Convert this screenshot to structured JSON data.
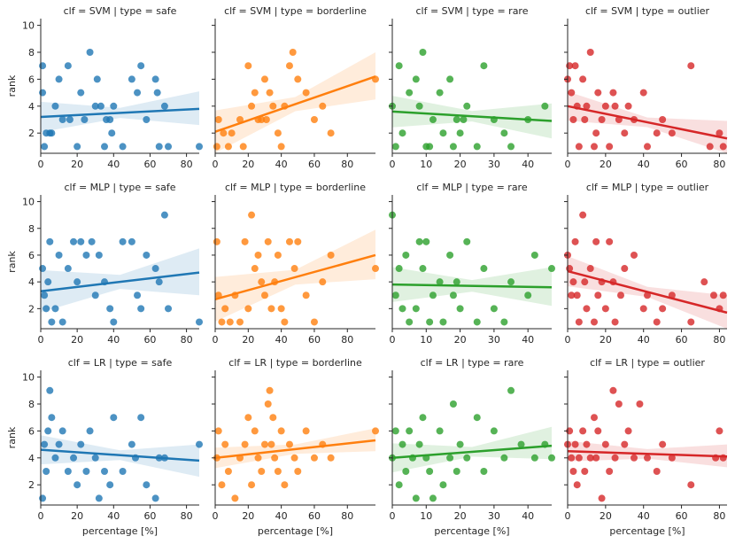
{
  "figure": {
    "xlabel": "percentage [%]",
    "ylabel": "rank",
    "yticks": [
      2,
      4,
      6,
      8,
      10
    ],
    "ylim": [
      0.5,
      10.5
    ]
  },
  "type_colors": {
    "safe": "#1f77b4",
    "borderline": "#ff7f0e",
    "rare": "#2ca02c",
    "outlier": "#d62728"
  },
  "columns": [
    {
      "type": "safe",
      "xlim": [
        0,
        87
      ],
      "xticks": [
        0,
        20,
        40,
        60,
        80
      ]
    },
    {
      "type": "borderline",
      "xlim": [
        0,
        97
      ],
      "xticks": [
        0,
        20,
        40,
        60,
        80
      ]
    },
    {
      "type": "rare",
      "xlim": [
        0,
        47
      ],
      "xticks": [
        0,
        10,
        20,
        30,
        40
      ]
    },
    {
      "type": "outlier",
      "xlim": [
        0,
        84
      ],
      "xticks": [
        0,
        20,
        40,
        60,
        80
      ]
    }
  ],
  "rows": [
    {
      "clf": "SVM"
    },
    {
      "clf": "MLP"
    },
    {
      "clf": "LR"
    }
  ],
  "chart_data": [
    {
      "type": "scatter",
      "clf": "SVM",
      "data_type": "safe",
      "title": "clf = SVM | type = safe",
      "x": [
        1,
        1,
        2,
        3,
        5,
        6,
        8,
        10,
        12,
        15,
        16,
        20,
        22,
        24,
        27,
        30,
        31,
        33,
        35,
        36,
        38,
        39,
        40,
        45,
        50,
        53,
        55,
        58,
        63,
        64,
        65,
        68,
        70,
        87
      ],
      "y": [
        7,
        5,
        1,
        2,
        2,
        2,
        4,
        6,
        3,
        7,
        3,
        1,
        5,
        3,
        8,
        4,
        6,
        4,
        1,
        3,
        3,
        2,
        4,
        1,
        6,
        5,
        7,
        3,
        6,
        5,
        1,
        4,
        1,
        1
      ],
      "regression": {
        "start": [
          0,
          3.2
        ],
        "end": [
          87,
          3.8
        ],
        "ci_lower_end": 2.6,
        "ci_upper_end": 5.1
      }
    },
    {
      "type": "scatter",
      "clf": "SVM",
      "data_type": "borderline",
      "title": "clf = SVM | type = borderline",
      "x": [
        1,
        2,
        5,
        8,
        10,
        15,
        17,
        20,
        22,
        24,
        26,
        28,
        30,
        31,
        33,
        35,
        38,
        40,
        42,
        45,
        47,
        50,
        55,
        60,
        65,
        70,
        97
      ],
      "y": [
        1,
        3,
        2,
        1,
        2,
        3,
        1,
        7,
        4,
        5,
        3,
        3,
        6,
        3,
        5,
        4,
        2,
        1,
        4,
        7,
        8,
        6,
        5,
        3,
        4,
        2,
        6
      ],
      "regression": {
        "start": [
          0,
          2.1
        ],
        "end": [
          97,
          6.2
        ],
        "ci_lower_end": 4.5,
        "ci_upper_end": 8.0
      }
    },
    {
      "type": "scatter",
      "clf": "SVM",
      "data_type": "rare",
      "title": "clf = SVM | type = rare",
      "x": [
        0,
        1,
        2,
        3,
        5,
        7,
        8,
        9,
        10,
        11,
        12,
        14,
        15,
        17,
        18,
        19,
        20,
        21,
        22,
        25,
        27,
        30,
        33,
        35,
        40,
        45
      ],
      "y": [
        4,
        1,
        7,
        2,
        5,
        6,
        4,
        8,
        1,
        1,
        3,
        5,
        2,
        6,
        1,
        3,
        2,
        3,
        4,
        1,
        7,
        3,
        2,
        1,
        3,
        4
      ],
      "regression": {
        "start": [
          0,
          3.6
        ],
        "end": [
          47,
          2.9
        ],
        "ci_lower_end": 1.6,
        "ci_upper_end": 4.2
      }
    },
    {
      "type": "scatter",
      "clf": "SVM",
      "data_type": "outlier",
      "title": "clf = SVM | type = outlier",
      "x": [
        0,
        1,
        2,
        3,
        4,
        5,
        6,
        8,
        9,
        10,
        12,
        14,
        15,
        16,
        18,
        20,
        22,
        24,
        25,
        27,
        30,
        32,
        35,
        40,
        42,
        47,
        50,
        55,
        65,
        75,
        80,
        82
      ],
      "y": [
        6,
        7,
        5,
        3,
        7,
        4,
        1,
        6,
        3,
        4,
        8,
        1,
        2,
        5,
        3,
        4,
        1,
        5,
        4,
        3,
        2,
        4,
        3,
        5,
        1,
        2,
        3,
        2,
        7,
        1,
        2,
        1
      ],
      "regression": {
        "start": [
          0,
          4.0
        ],
        "end": [
          84,
          1.6
        ],
        "ci_lower_end": 0.5,
        "ci_upper_end": 2.9
      }
    },
    {
      "type": "scatter",
      "clf": "MLP",
      "data_type": "safe",
      "title": "clf = MLP | type = safe",
      "x": [
        1,
        2,
        3,
        4,
        5,
        6,
        8,
        10,
        12,
        15,
        18,
        20,
        22,
        25,
        28,
        30,
        32,
        35,
        38,
        40,
        45,
        50,
        53,
        55,
        58,
        63,
        65,
        68,
        70,
        87
      ],
      "y": [
        5,
        3,
        2,
        4,
        7,
        1,
        2,
        6,
        1,
        5,
        7,
        4,
        7,
        6,
        7,
        3,
        6,
        4,
        2,
        1,
        7,
        7,
        3,
        2,
        6,
        5,
        4,
        9,
        2,
        1
      ],
      "regression": {
        "start": [
          0,
          3.3
        ],
        "end": [
          87,
          4.7
        ],
        "ci_lower_end": 3.0,
        "ci_upper_end": 6.5
      }
    },
    {
      "type": "scatter",
      "clf": "MLP",
      "data_type": "borderline",
      "title": "clf = MLP | type = borderline",
      "x": [
        1,
        2,
        4,
        6,
        9,
        12,
        15,
        18,
        20,
        22,
        24,
        26,
        28,
        30,
        32,
        34,
        36,
        38,
        40,
        42,
        45,
        48,
        50,
        55,
        60,
        65,
        70,
        97
      ],
      "y": [
        7,
        3,
        1,
        2,
        1,
        3,
        1,
        7,
        2,
        9,
        5,
        6,
        4,
        3,
        7,
        2,
        4,
        6,
        2,
        1,
        7,
        5,
        7,
        3,
        1,
        4,
        6,
        5
      ],
      "regression": {
        "start": [
          0,
          2.7
        ],
        "end": [
          97,
          6.0
        ],
        "ci_lower_end": 4.2,
        "ci_upper_end": 7.9
      }
    },
    {
      "type": "scatter",
      "clf": "MLP",
      "data_type": "rare",
      "title": "clf = MLP | type = rare",
      "x": [
        0,
        1,
        2,
        3,
        4,
        5,
        7,
        8,
        9,
        10,
        11,
        12,
        14,
        15,
        17,
        18,
        19,
        20,
        22,
        25,
        27,
        30,
        33,
        35,
        40,
        42,
        47
      ],
      "y": [
        9,
        3,
        5,
        2,
        6,
        1,
        2,
        7,
        5,
        7,
        1,
        3,
        4,
        1,
        6,
        3,
        4,
        2,
        7,
        1,
        5,
        2,
        1,
        4,
        3,
        6,
        5
      ],
      "regression": {
        "start": [
          0,
          3.8
        ],
        "end": [
          47,
          3.6
        ],
        "ci_lower_end": 2.2,
        "ci_upper_end": 5.1
      }
    },
    {
      "type": "scatter",
      "clf": "MLP",
      "data_type": "outlier",
      "title": "clf = MLP | type = outlier",
      "x": [
        0,
        1,
        2,
        3,
        4,
        5,
        6,
        8,
        9,
        10,
        12,
        14,
        15,
        16,
        18,
        20,
        22,
        24,
        25,
        28,
        30,
        35,
        40,
        42,
        47,
        50,
        55,
        65,
        72,
        77,
        80,
        82
      ],
      "y": [
        6,
        5,
        3,
        4,
        7,
        3,
        1,
        9,
        4,
        2,
        5,
        1,
        7,
        3,
        4,
        2,
        7,
        4,
        1,
        3,
        5,
        6,
        2,
        3,
        1,
        2,
        3,
        1,
        4,
        3,
        2,
        3
      ],
      "regression": {
        "start": [
          0,
          4.8
        ],
        "end": [
          84,
          1.7
        ],
        "ci_lower_end": 0.5,
        "ci_upper_end": 3.0
      }
    },
    {
      "type": "scatter",
      "clf": "LR",
      "data_type": "safe",
      "title": "clf = LR | type = safe",
      "x": [
        1,
        2,
        3,
        4,
        5,
        6,
        8,
        10,
        12,
        15,
        18,
        20,
        22,
        25,
        27,
        30,
        32,
        35,
        38,
        40,
        45,
        50,
        52,
        55,
        58,
        63,
        65,
        68,
        87
      ],
      "y": [
        1,
        5,
        3,
        6,
        9,
        7,
        4,
        5,
        6,
        3,
        4,
        2,
        5,
        3,
        6,
        4,
        1,
        3,
        2,
        7,
        3,
        5,
        4,
        7,
        2,
        1,
        4,
        4,
        5
      ],
      "regression": {
        "start": [
          0,
          4.6
        ],
        "end": [
          87,
          3.8
        ],
        "ci_lower_end": 2.6,
        "ci_upper_end": 5.0
      }
    },
    {
      "type": "scatter",
      "clf": "LR",
      "data_type": "borderline",
      "title": "clf = LR | type = borderline",
      "x": [
        1,
        2,
        4,
        6,
        8,
        12,
        15,
        18,
        20,
        22,
        24,
        26,
        28,
        30,
        32,
        33,
        34,
        35,
        36,
        38,
        40,
        42,
        45,
        48,
        50,
        55,
        60,
        65,
        70,
        97
      ],
      "y": [
        4,
        6,
        2,
        5,
        3,
        1,
        4,
        5,
        7,
        2,
        6,
        4,
        3,
        5,
        8,
        9,
        5,
        7,
        4,
        3,
        6,
        2,
        5,
        4,
        3,
        6,
        4,
        5,
        4,
        6
      ],
      "regression": {
        "start": [
          0,
          4.0
        ],
        "end": [
          97,
          5.3
        ],
        "ci_lower_end": 4.5,
        "ci_upper_end": 6.2
      }
    },
    {
      "type": "scatter",
      "clf": "LR",
      "data_type": "rare",
      "title": "clf = LR | type = rare",
      "x": [
        0,
        1,
        2,
        3,
        4,
        5,
        6,
        7,
        8,
        9,
        10,
        11,
        12,
        14,
        15,
        17,
        18,
        19,
        20,
        22,
        25,
        27,
        30,
        33,
        35,
        38,
        42,
        45,
        47
      ],
      "y": [
        4,
        6,
        2,
        5,
        3,
        6,
        4,
        1,
        5,
        7,
        4,
        3,
        1,
        6,
        2,
        4,
        8,
        3,
        5,
        4,
        7,
        3,
        6,
        4,
        9,
        5,
        4,
        5,
        4
      ],
      "regression": {
        "start": [
          0,
          4.0
        ],
        "end": [
          47,
          4.9
        ],
        "ci_lower_end": 3.9,
        "ci_upper_end": 6.3
      }
    },
    {
      "type": "scatter",
      "clf": "LR",
      "data_type": "outlier",
      "title": "clf = LR | type = outlier",
      "x": [
        0,
        1,
        2,
        3,
        4,
        5,
        6,
        8,
        9,
        10,
        12,
        14,
        15,
        16,
        18,
        20,
        22,
        24,
        25,
        27,
        30,
        32,
        35,
        38,
        42,
        47,
        50,
        55,
        65,
        78,
        80,
        82
      ],
      "y": [
        5,
        6,
        4,
        3,
        5,
        2,
        4,
        6,
        3,
        5,
        4,
        7,
        4,
        6,
        1,
        5,
        3,
        9,
        4,
        8,
        5,
        6,
        4,
        8,
        4,
        3,
        5,
        4,
        2,
        4,
        6,
        4
      ],
      "regression": {
        "start": [
          0,
          4.5
        ],
        "end": [
          84,
          4.1
        ],
        "ci_lower_end": 3.3,
        "ci_upper_end": 5.0
      }
    }
  ]
}
